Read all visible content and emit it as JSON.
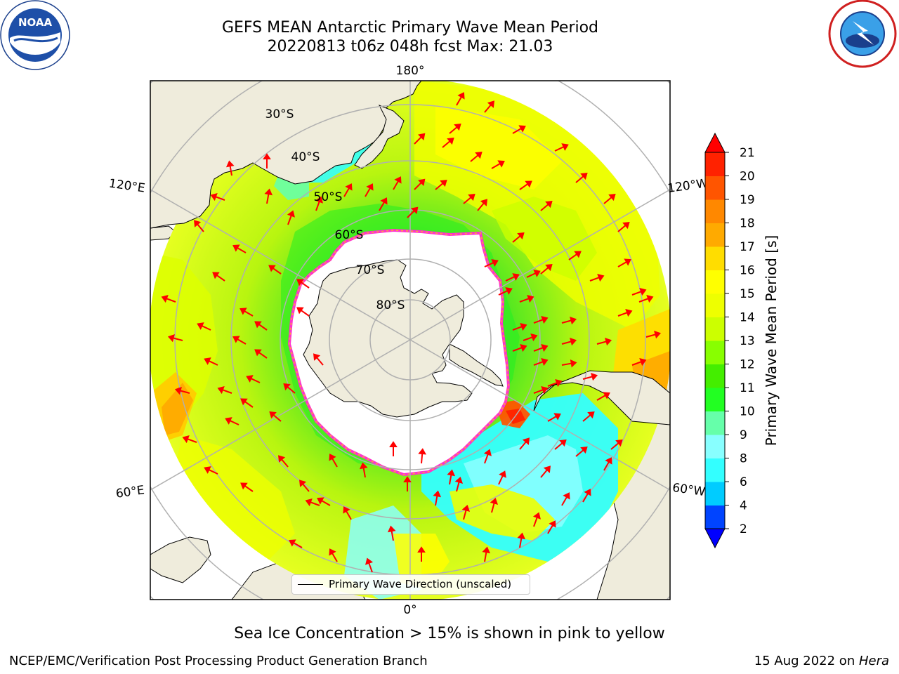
{
  "header": {
    "title_line1": "GEFS MEAN Antarctic Primary Wave Mean Period",
    "title_line2": "20220813 t06z 048h fcst   Max: 21.03"
  },
  "logos": {
    "left": {
      "name": "NOAA",
      "ring_text": "NATIONAL OCEANIC AND ATMOSPHERIC ADMINISTRATION · U.S. DEPARTMENT OF COMMERCE"
    },
    "right": {
      "name": "NATIONAL WEATHER SERVICE"
    }
  },
  "map": {
    "lon_labels": {
      "top": "180°",
      "bottom": "0°",
      "upper_left": "120°E",
      "upper_right": "120°W",
      "lower_left": "60°E",
      "lower_right": "60°W"
    },
    "lat_labels": [
      "30°S",
      "40°S",
      "50°S",
      "60°S",
      "70°S",
      "80°S"
    ],
    "colors": {
      "land": "#efecdc",
      "ice": "#ffffff",
      "ice_edge": "#ff33cc",
      "arrow": "#ff0000",
      "grid": "#b0b0b0"
    }
  },
  "legend": {
    "label": "Primary Wave Direction (unscaled)"
  },
  "colorbar": {
    "label": "Primary Wave Mean Period [s]",
    "ticks": [
      "2",
      "4",
      "6",
      "8",
      "9",
      "10",
      "11",
      "12",
      "13",
      "14",
      "15",
      "16",
      "17",
      "18",
      "19",
      "20",
      "21"
    ],
    "colors": [
      "#0044ff",
      "#00ccff",
      "#33ffff",
      "#88ffff",
      "#66ffaa",
      "#22ff22",
      "#44ee00",
      "#88ff00",
      "#ccff00",
      "#eeff00",
      "#ffff00",
      "#ffdd00",
      "#ffaa00",
      "#ff8800",
      "#ff5500",
      "#ff2200"
    ],
    "under_color": "#0000ff",
    "over_color": "#ff0000"
  },
  "chart_data": {
    "type": "heatmap",
    "title": "GEFS MEAN Antarctic Primary Wave Mean Period",
    "subtitle": "20220813 t06z 048h fcst   Max: 21.03",
    "variable": "Primary Wave Mean Period",
    "units": "s",
    "max": 21.03,
    "levels": [
      2,
      4,
      6,
      8,
      9,
      10,
      11,
      12,
      13,
      14,
      15,
      16,
      17,
      18,
      19,
      20,
      21
    ]
  },
  "footer": {
    "caption": "Sea Ice Concentration > 15% is shown in pink to yellow",
    "credit": "NCEP/EMC/Verification Post Processing Product Generation Branch",
    "date_prefix": "15 Aug 2022 on ",
    "date_machine": "Hera"
  }
}
